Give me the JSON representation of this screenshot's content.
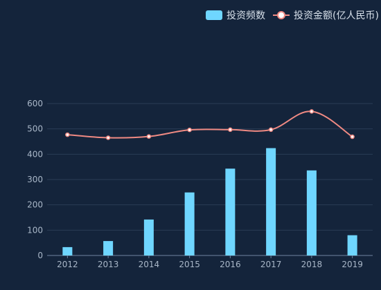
{
  "chart_data": {
    "type": "bar",
    "categories": [
      "2012",
      "2013",
      "2014",
      "2015",
      "2016",
      "2017",
      "2018",
      "2019"
    ],
    "series": [
      {
        "name": "投资频数",
        "type": "bar",
        "values": [
          33,
          57,
          142,
          249,
          343,
          424,
          336,
          80
        ]
      },
      {
        "name": "投资金额(亿人民币)",
        "type": "line",
        "values": [
          477,
          465,
          470,
          496,
          497,
          497,
          569,
          469
        ]
      }
    ],
    "yticks": [
      "0",
      "100",
      "200",
      "300",
      "400",
      "500",
      "600"
    ],
    "ylim": [
      0,
      600
    ],
    "legend_position": "top-right",
    "grid": true
  },
  "colors": {
    "background": "#14243b",
    "bar": "#6fd6ff",
    "line": "#f08a83",
    "grid": "#2a3c56",
    "axis": "#6f84a1",
    "text": "#a9b7c8"
  }
}
